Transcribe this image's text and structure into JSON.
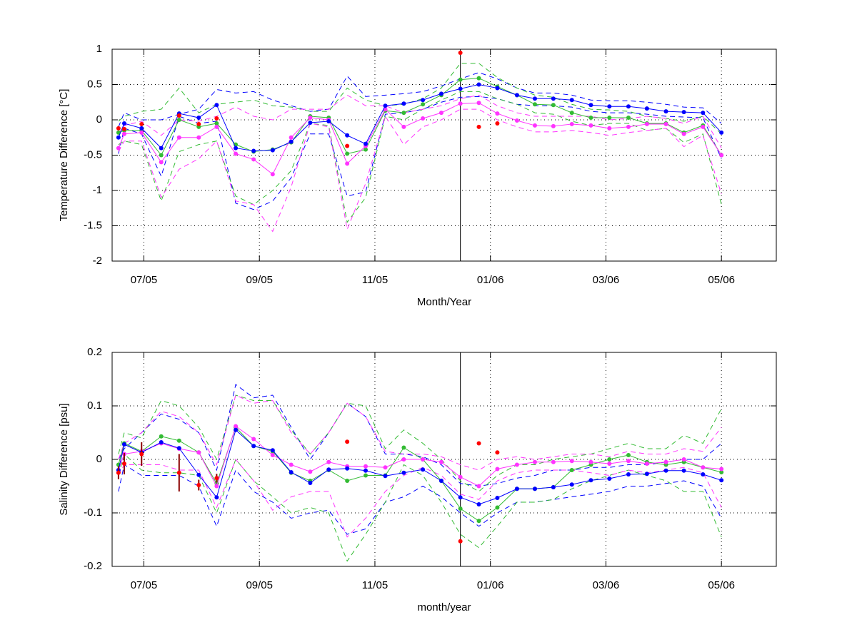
{
  "chart_data": [
    {
      "type": "line",
      "xlabel": "Month/Year",
      "ylabel": "Temperature Difference [°C]",
      "x": [
        6.56,
        6.66,
        6.96,
        7.3,
        7.61,
        7.95,
        8.26,
        8.59,
        8.9,
        9.23,
        9.55,
        9.88,
        10.2,
        10.52,
        10.84,
        11.18,
        11.5,
        11.83,
        12.15,
        12.48,
        12.8,
        13.12,
        13.46,
        13.77,
        14.09,
        14.41,
        14.74,
        15.06,
        15.39,
        15.71,
        16.04,
        16.35,
        16.68,
        17.0
      ],
      "xlim": [
        6.45,
        17.95
      ],
      "xticks": [
        {
          "value": 7,
          "label": "07/05"
        },
        {
          "value": 9,
          "label": "09/05"
        },
        {
          "value": 11,
          "label": "11/05"
        },
        {
          "value": 13,
          "label": "01/06"
        },
        {
          "value": 15,
          "label": "03/06"
        },
        {
          "value": 17,
          "label": "05/06"
        }
      ],
      "ylim": [
        -2,
        1
      ],
      "yticks": [
        1,
        0.5,
        0,
        -0.5,
        -1,
        -1.5,
        -2
      ],
      "grid": true,
      "vline": 12.48,
      "series": [
        {
          "color": "#0000ff",
          "dash": true,
          "values": [
            -0.1,
            0.1,
            0.0,
            0.0,
            0.08,
            0.15,
            0.43,
            0.38,
            0.4,
            0.28,
            0.2,
            0.12,
            0.15,
            0.62,
            0.33,
            0.35,
            0.37,
            0.4,
            0.48,
            0.58,
            0.67,
            0.58,
            0.45,
            0.38,
            0.38,
            0.35,
            0.28,
            0.27,
            0.27,
            0.25,
            0.22,
            0.18,
            0.17,
            -0.05
          ]
        },
        {
          "color": "#0000ff",
          "dash": true,
          "values": [
            -0.48,
            -0.12,
            -0.2,
            -0.8,
            0.05,
            -0.05,
            -0.02,
            -1.18,
            -1.27,
            -1.15,
            -0.82,
            -0.2,
            -0.2,
            -1.08,
            -1.02,
            0.08,
            0.1,
            0.15,
            0.25,
            0.32,
            0.33,
            0.3,
            0.22,
            0.2,
            0.2,
            0.18,
            0.12,
            0.1,
            0.1,
            0.08,
            0.05,
            0.04,
            0.03,
            -0.55
          ]
        },
        {
          "color": "#33bb33",
          "dash": true,
          "values": [
            -0.02,
            0.05,
            0.12,
            0.15,
            0.45,
            0.1,
            0.22,
            0.25,
            0.28,
            0.2,
            0.18,
            0.12,
            0.12,
            0.45,
            0.28,
            0.2,
            0.22,
            0.3,
            0.45,
            0.8,
            0.8,
            0.6,
            0.45,
            0.35,
            0.32,
            0.22,
            0.15,
            0.14,
            0.12,
            0.05,
            0.02,
            -0.02,
            0.05,
            -0.2
          ]
        },
        {
          "color": "#33bb33",
          "dash": true,
          "values": [
            -0.35,
            -0.3,
            -0.35,
            -1.15,
            -0.45,
            -0.35,
            -0.3,
            -1.08,
            -1.2,
            -1.0,
            -0.72,
            -0.05,
            -0.08,
            -1.45,
            -1.1,
            0.05,
            0.0,
            0.15,
            0.28,
            0.4,
            0.4,
            0.3,
            0.22,
            0.1,
            0.08,
            -0.02,
            -0.08,
            -0.05,
            -0.05,
            -0.15,
            -0.12,
            -0.32,
            -0.2,
            -1.2
          ]
        },
        {
          "color": "#ff33ff",
          "dash": true,
          "values": [
            -0.2,
            -0.08,
            -0.02,
            -0.22,
            0.0,
            -0.02,
            0.05,
            0.18,
            0.05,
            0.0,
            0.15,
            0.15,
            0.15,
            0.35,
            0.2,
            0.2,
            0.1,
            0.15,
            0.2,
            0.3,
            0.35,
            0.2,
            0.1,
            0.05,
            0.05,
            0.05,
            0.05,
            0.0,
            0.02,
            0.05,
            0.02,
            -0.05,
            0.05,
            -0.4
          ]
        },
        {
          "color": "#ff33ff",
          "dash": true,
          "values": [
            -0.45,
            -0.3,
            -0.3,
            -1.1,
            -0.7,
            -0.55,
            -0.3,
            -1.15,
            -1.2,
            -1.58,
            -0.95,
            -0.05,
            -0.1,
            -1.55,
            -0.9,
            0.05,
            -0.35,
            -0.1,
            0.0,
            0.15,
            0.15,
            0.0,
            -0.1,
            -0.17,
            -0.17,
            -0.15,
            -0.18,
            -0.22,
            -0.18,
            -0.15,
            -0.12,
            -0.38,
            -0.22,
            -1.05
          ]
        },
        {
          "color": "#33bb33",
          "line": true,
          "marker": true,
          "values": [
            -0.18,
            -0.15,
            -0.15,
            -0.5,
            0.0,
            -0.1,
            -0.05,
            -0.35,
            -0.45,
            -0.42,
            -0.32,
            0.05,
            0.03,
            -0.48,
            -0.42,
            0.13,
            0.1,
            0.22,
            0.35,
            0.57,
            0.59,
            0.47,
            0.35,
            0.22,
            0.21,
            0.1,
            0.03,
            0.03,
            0.03,
            -0.05,
            -0.05,
            -0.18,
            -0.08,
            -0.5
          ]
        },
        {
          "color": "#ff33ff",
          "line": true,
          "marker": true,
          "values": [
            -0.4,
            -0.2,
            -0.18,
            -0.6,
            -0.25,
            -0.25,
            -0.1,
            -0.48,
            -0.56,
            -0.77,
            -0.25,
            0.03,
            0.0,
            -0.62,
            -0.37,
            0.15,
            -0.1,
            0.02,
            0.1,
            0.23,
            0.24,
            0.09,
            -0.01,
            -0.08,
            -0.09,
            -0.06,
            -0.08,
            -0.12,
            -0.1,
            -0.06,
            -0.06,
            -0.2,
            -0.1,
            -0.5
          ]
        },
        {
          "color": "#0000ff",
          "line": true,
          "marker": true,
          "values": [
            -0.25,
            -0.05,
            -0.12,
            -0.4,
            0.09,
            0.03,
            0.21,
            -0.4,
            -0.44,
            -0.43,
            -0.31,
            -0.04,
            -0.02,
            -0.22,
            -0.34,
            0.2,
            0.23,
            0.28,
            0.37,
            0.44,
            0.5,
            0.45,
            0.35,
            0.3,
            0.3,
            0.28,
            0.21,
            0.19,
            0.19,
            0.16,
            0.12,
            0.11,
            0.1,
            -0.18
          ]
        },
        {
          "color": "#ff0000",
          "marker": true,
          "values": [
            -0.12,
            -0.13,
            -0.06,
            null,
            0.06,
            -0.06,
            0.02,
            null,
            null,
            null,
            null,
            null,
            null,
            -0.37,
            null,
            null,
            null,
            null,
            null,
            0.95,
            -0.1,
            -0.05,
            null,
            null,
            null,
            null,
            null,
            null,
            null,
            null,
            null,
            null,
            null,
            null
          ]
        }
      ]
    },
    {
      "type": "line",
      "xlabel": "month/year",
      "ylabel": "Salinity Difference [psu]",
      "x": [
        6.56,
        6.66,
        6.96,
        7.3,
        7.61,
        7.95,
        8.26,
        8.59,
        8.9,
        9.23,
        9.55,
        9.88,
        10.2,
        10.52,
        10.84,
        11.18,
        11.5,
        11.83,
        12.15,
        12.48,
        12.8,
        13.12,
        13.46,
        13.77,
        14.09,
        14.41,
        14.74,
        15.06,
        15.39,
        15.71,
        16.04,
        16.35,
        16.68,
        17.0
      ],
      "xlim": [
        6.45,
        17.95
      ],
      "xticks": [
        {
          "value": 7,
          "label": "07/05"
        },
        {
          "value": 9,
          "label": "09/05"
        },
        {
          "value": 11,
          "label": "11/05"
        },
        {
          "value": 13,
          "label": "01/06"
        },
        {
          "value": 15,
          "label": "03/06"
        },
        {
          "value": 17,
          "label": "05/06"
        }
      ],
      "ylim": [
        -0.2,
        0.2
      ],
      "yticks": [
        0.2,
        0.1,
        0,
        -0.1,
        -0.2
      ],
      "grid": true,
      "vline": 12.48,
      "series": [
        {
          "color": "#0000ff",
          "dash": true,
          "values": [
            0.0,
            0.02,
            0.05,
            0.085,
            0.075,
            0.05,
            -0.02,
            0.14,
            0.115,
            0.12,
            0.06,
            0.0,
            0.05,
            0.105,
            0.08,
            0.01,
            0.01,
            0.005,
            -0.01,
            -0.045,
            -0.05,
            -0.045,
            -0.035,
            -0.03,
            -0.02,
            -0.02,
            -0.015,
            -0.015,
            -0.01,
            -0.01,
            -0.005,
            0.0,
            0.0,
            0.03
          ]
        },
        {
          "color": "#0000ff",
          "dash": true,
          "values": [
            -0.06,
            -0.01,
            -0.03,
            -0.03,
            -0.03,
            -0.05,
            -0.125,
            -0.02,
            -0.06,
            -0.08,
            -0.11,
            -0.1,
            -0.095,
            -0.14,
            -0.13,
            -0.08,
            -0.07,
            -0.05,
            -0.07,
            -0.1,
            -0.125,
            -0.1,
            -0.08,
            -0.08,
            -0.075,
            -0.07,
            -0.065,
            -0.06,
            -0.05,
            -0.05,
            -0.045,
            -0.04,
            -0.05,
            -0.11
          ]
        },
        {
          "color": "#33bb33",
          "dash": true,
          "values": [
            0.01,
            0.05,
            0.04,
            0.11,
            0.1,
            0.06,
            0.0,
            0.12,
            0.11,
            0.11,
            0.055,
            0.01,
            0.05,
            0.105,
            0.1,
            0.02,
            0.055,
            0.03,
            0.0,
            -0.04,
            -0.06,
            -0.03,
            -0.01,
            -0.01,
            0.0,
            0.005,
            0.01,
            0.02,
            0.03,
            0.02,
            0.02,
            0.045,
            0.03,
            0.095
          ]
        },
        {
          "color": "#33bb33",
          "dash": true,
          "values": [
            -0.03,
            0.01,
            -0.02,
            -0.025,
            -0.025,
            -0.03,
            -0.1,
            0.0,
            -0.04,
            -0.07,
            -0.1,
            -0.09,
            -0.1,
            -0.19,
            -0.14,
            -0.08,
            -0.01,
            -0.03,
            -0.08,
            -0.14,
            -0.165,
            -0.125,
            -0.08,
            -0.08,
            -0.075,
            -0.055,
            -0.04,
            -0.03,
            -0.02,
            -0.03,
            -0.04,
            -0.06,
            -0.06,
            -0.145
          ]
        },
        {
          "color": "#ff33ff",
          "dash": true,
          "values": [
            0.0,
            0.03,
            0.05,
            0.09,
            0.08,
            0.05,
            -0.01,
            0.12,
            0.105,
            0.11,
            0.05,
            0.01,
            0.05,
            0.105,
            0.08,
            0.015,
            0.01,
            0.01,
            0.005,
            -0.01,
            -0.02,
            0.0,
            0.005,
            0.0,
            0.005,
            0.01,
            0.01,
            0.005,
            0.015,
            0.01,
            0.01,
            0.02,
            0.015,
            0.06
          ]
        },
        {
          "color": "#ff33ff",
          "dash": true,
          "values": [
            -0.03,
            -0.01,
            -0.01,
            -0.01,
            -0.02,
            -0.02,
            -0.09,
            0.0,
            -0.04,
            -0.095,
            -0.07,
            -0.06,
            -0.06,
            -0.145,
            -0.11,
            -0.06,
            -0.03,
            -0.015,
            -0.03,
            -0.065,
            -0.075,
            -0.04,
            -0.025,
            -0.02,
            -0.02,
            -0.02,
            -0.025,
            -0.03,
            -0.02,
            -0.025,
            -0.02,
            -0.015,
            -0.025,
            -0.09
          ]
        },
        {
          "color": "#33bb33",
          "line": true,
          "marker": true,
          "values": [
            -0.01,
            0.03,
            0.015,
            0.043,
            0.035,
            0.013,
            -0.045,
            0.06,
            0.025,
            0.015,
            -0.025,
            -0.04,
            -0.02,
            -0.04,
            -0.03,
            -0.03,
            0.022,
            0.0,
            -0.04,
            -0.092,
            -0.115,
            -0.09,
            -0.055,
            -0.055,
            -0.052,
            -0.02,
            -0.01,
            0.0,
            0.008,
            -0.005,
            -0.01,
            -0.005,
            -0.015,
            -0.024
          ]
        },
        {
          "color": "#ff33ff",
          "line": true,
          "marker": true,
          "values": [
            -0.02,
            0.01,
            0.015,
            0.03,
            0.02,
            0.013,
            -0.05,
            0.062,
            0.038,
            0.008,
            -0.01,
            -0.023,
            -0.005,
            -0.013,
            -0.013,
            -0.015,
            0.0,
            0.0,
            -0.005,
            -0.033,
            -0.05,
            -0.018,
            -0.01,
            -0.005,
            -0.005,
            -0.003,
            -0.005,
            -0.008,
            -0.003,
            -0.008,
            -0.005,
            0.0,
            -0.015,
            -0.018
          ]
        },
        {
          "color": "#0000ff",
          "line": true,
          "marker": true,
          "values": [
            -0.02,
            0.028,
            0.013,
            0.032,
            0.021,
            -0.029,
            -0.071,
            0.055,
            0.025,
            0.017,
            -0.024,
            -0.044,
            -0.019,
            -0.017,
            -0.021,
            -0.031,
            -0.025,
            -0.019,
            -0.04,
            -0.071,
            -0.084,
            -0.072,
            -0.055,
            -0.055,
            -0.052,
            -0.047,
            -0.039,
            -0.036,
            -0.028,
            -0.027,
            -0.021,
            -0.021,
            -0.028,
            -0.039
          ]
        },
        {
          "color": "#ff0000",
          "marker": true,
          "error_color": "#8b0000",
          "values": [
            -0.025,
            -0.008,
            0.01,
            null,
            -0.025,
            -0.048,
            -0.035,
            null,
            null,
            null,
            null,
            null,
            null,
            0.033,
            null,
            null,
            null,
            null,
            null,
            -0.153,
            0.03,
            0.013,
            null,
            null,
            null,
            null,
            null,
            null,
            null,
            null,
            null,
            null,
            null,
            null
          ],
          "errors": [
            0.012,
            0.02,
            0.022,
            null,
            0.035,
            0.01,
            0.008,
            null,
            null,
            null,
            null,
            null,
            null,
            null,
            null,
            null,
            null,
            null,
            null,
            null,
            null,
            null,
            null,
            null,
            null,
            null,
            null,
            null,
            null,
            null,
            null,
            null,
            null,
            null
          ]
        }
      ]
    }
  ]
}
